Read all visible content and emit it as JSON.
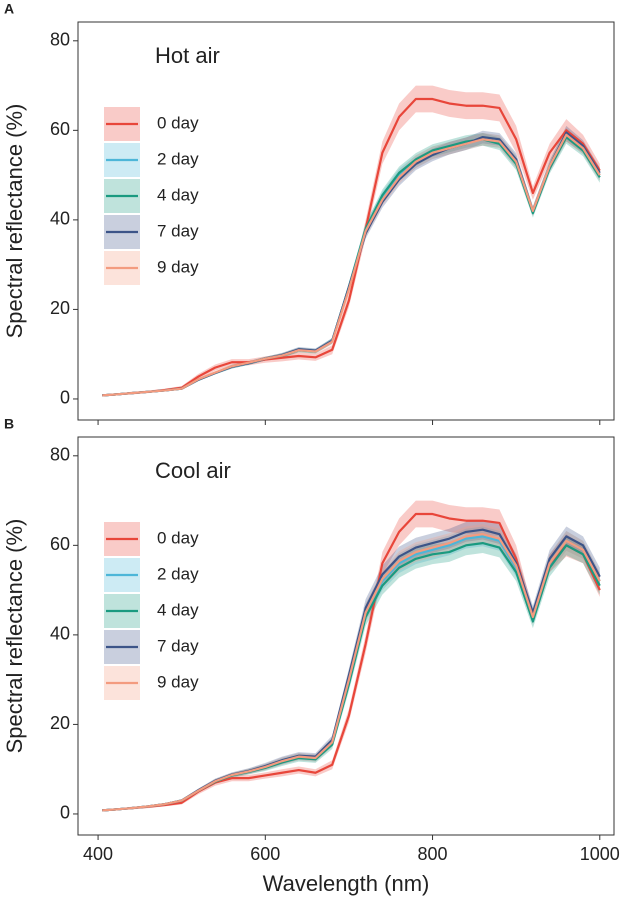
{
  "chart_data": [
    {
      "type": "line",
      "panel_label": "A",
      "legend_title": "Hot air",
      "ylabel": "Spectral reflectance (%)",
      "xlim": [
        376,
        1017
      ],
      "ylim": [
        -4.7,
        84.2
      ],
      "xticks": [
        400,
        600,
        800,
        1000
      ],
      "yticks": [
        0,
        20,
        40,
        60,
        80
      ],
      "show_xtick_labels": false,
      "x": [
        405,
        420,
        440,
        460,
        480,
        500,
        520,
        540,
        560,
        580,
        600,
        620,
        640,
        660,
        680,
        700,
        720,
        740,
        760,
        780,
        800,
        820,
        840,
        860,
        880,
        900,
        920,
        940,
        960,
        980,
        1000
      ],
      "series": [
        {
          "name": "0 day",
          "color": "#e8463a",
          "values": [
            0.8,
            1.0,
            1.3,
            1.6,
            2.0,
            2.5,
            5.0,
            7.0,
            8.2,
            8.2,
            8.8,
            9.2,
            9.6,
            9.3,
            11,
            22,
            38,
            55,
            63,
            67,
            67,
            66,
            65.5,
            65.5,
            65,
            58,
            46,
            55,
            60,
            57,
            51
          ],
          "errors": [
            0.2,
            0.2,
            0.3,
            0.3,
            0.3,
            0.4,
            0.6,
            0.7,
            0.7,
            0.7,
            0.7,
            0.8,
            0.8,
            0.8,
            1,
            1.5,
            2,
            2.5,
            3,
            3,
            3,
            3,
            3,
            3,
            3,
            3,
            1.5,
            2,
            2.5,
            2,
            1.5
          ]
        },
        {
          "name": "2 day",
          "color": "#4db6d8",
          "values": [
            0.8,
            1.0,
            1.3,
            1.6,
            1.9,
            2.3,
            4.3,
            5.8,
            7.2,
            8.0,
            9.0,
            9.7,
            11.0,
            10.7,
            13,
            25,
            38,
            45,
            50,
            53,
            55,
            56,
            57,
            58,
            57.5,
            53,
            42,
            52,
            59,
            56,
            50
          ],
          "errors": [
            0.1,
            0.1,
            0.1,
            0.2,
            0.2,
            0.2,
            0.3,
            0.3,
            0.4,
            0.4,
            0.4,
            0.5,
            0.5,
            0.5,
            0.6,
            1,
            1.2,
            1.3,
            1.4,
            1.4,
            1.4,
            1.4,
            1.4,
            1.4,
            1.4,
            1.4,
            1,
            1.2,
            1.5,
            1.3,
            1.2
          ]
        },
        {
          "name": "4 day",
          "color": "#1a9a80",
          "values": [
            0.8,
            1.0,
            1.3,
            1.6,
            1.9,
            2.3,
            4.3,
            5.8,
            7.2,
            8.0,
            9.0,
            9.7,
            10.9,
            10.6,
            13,
            25,
            38,
            45.5,
            50.5,
            53.5,
            55.5,
            56.5,
            57.5,
            58,
            57,
            52.5,
            41.5,
            51.5,
            58.5,
            55.5,
            49.5
          ],
          "errors": [
            0.1,
            0.1,
            0.1,
            0.2,
            0.2,
            0.2,
            0.3,
            0.3,
            0.4,
            0.4,
            0.4,
            0.5,
            0.5,
            0.5,
            0.6,
            1,
            1.2,
            1.3,
            1.4,
            1.4,
            1.4,
            1.4,
            1.4,
            1.4,
            1.4,
            1.4,
            1,
            1.2,
            1.5,
            1.3,
            1.2
          ]
        },
        {
          "name": "7 day",
          "color": "#3c5488",
          "values": [
            0.8,
            1.0,
            1.3,
            1.6,
            1.9,
            2.3,
            4.3,
            5.8,
            7.2,
            8.0,
            9.0,
            9.8,
            11.1,
            10.8,
            13,
            25,
            37,
            44,
            49,
            52.5,
            54.5,
            56,
            57,
            58.5,
            58,
            53.5,
            42,
            52,
            59.5,
            56.5,
            50.5
          ],
          "errors": [
            0.1,
            0.1,
            0.1,
            0.2,
            0.2,
            0.2,
            0.3,
            0.3,
            0.4,
            0.4,
            0.4,
            0.5,
            0.5,
            0.5,
            0.6,
            1,
            1.2,
            1.3,
            1.4,
            1.4,
            1.4,
            1.4,
            1.4,
            1.4,
            1.4,
            1.4,
            1,
            1.2,
            1.5,
            1.3,
            1.2
          ]
        },
        {
          "name": "9 day",
          "color": "#f39b7f",
          "values": [
            0.8,
            1.0,
            1.3,
            1.6,
            1.9,
            2.3,
            4.4,
            5.9,
            7.3,
            8.1,
            9.0,
            9.7,
            10.9,
            10.6,
            12.8,
            24.5,
            37.5,
            44.5,
            49.5,
            53,
            55,
            56,
            57,
            58,
            57.5,
            53,
            42,
            52,
            59,
            56,
            50
          ],
          "errors": [
            0.1,
            0.1,
            0.1,
            0.2,
            0.2,
            0.2,
            0.3,
            0.3,
            0.4,
            0.4,
            0.4,
            0.5,
            0.5,
            0.5,
            0.6,
            1,
            1.2,
            1.3,
            1.4,
            1.4,
            1.4,
            1.4,
            1.4,
            1.4,
            1.4,
            1.4,
            1,
            1.2,
            1.5,
            1.3,
            1.2
          ]
        }
      ]
    },
    {
      "type": "line",
      "panel_label": "B",
      "legend_title": "Cool air",
      "ylabel": "Spectral reflectance (%)",
      "xlabel": "Wavelength (nm)",
      "xlim": [
        376,
        1017
      ],
      "ylim": [
        -4.7,
        84.2
      ],
      "xticks": [
        400,
        600,
        800,
        1000
      ],
      "yticks": [
        0,
        20,
        40,
        60,
        80
      ],
      "show_xtick_labels": true,
      "x": [
        405,
        420,
        440,
        460,
        480,
        500,
        520,
        540,
        560,
        580,
        600,
        620,
        640,
        660,
        680,
        700,
        720,
        740,
        760,
        780,
        800,
        820,
        840,
        860,
        880,
        900,
        920,
        940,
        960,
        980,
        1000
      ],
      "series": [
        {
          "name": "0 day",
          "color": "#e8463a",
          "values": [
            0.8,
            1.0,
            1.3,
            1.6,
            2.0,
            2.5,
            5.0,
            7.0,
            8.0,
            8.0,
            8.6,
            9.2,
            9.8,
            9.2,
            11,
            22,
            38,
            56,
            63,
            67,
            67,
            66,
            65.5,
            65.5,
            65,
            57,
            44,
            56,
            60,
            58,
            50
          ],
          "errors": [
            0.2,
            0.2,
            0.3,
            0.3,
            0.3,
            0.4,
            0.6,
            0.7,
            0.7,
            0.7,
            0.7,
            0.8,
            0.8,
            0.8,
            1,
            1.5,
            2,
            2.5,
            3,
            3,
            3,
            3,
            3,
            3,
            3,
            3,
            1.5,
            2,
            2.5,
            2,
            1.5
          ]
        },
        {
          "name": "2 day",
          "color": "#4db6d8",
          "values": [
            0.8,
            1.0,
            1.3,
            1.7,
            2.2,
            3.0,
            5.2,
            7.3,
            8.7,
            9.5,
            10.5,
            11.8,
            12.8,
            12.5,
            16,
            30,
            45,
            52,
            56,
            58,
            59,
            60,
            61.5,
            62,
            61,
            55,
            44,
            56,
            61,
            59,
            52
          ],
          "errors": [
            0.1,
            0.1,
            0.2,
            0.2,
            0.2,
            0.3,
            0.4,
            0.5,
            0.5,
            0.6,
            0.7,
            0.8,
            0.8,
            0.8,
            1,
            1.5,
            2,
            2,
            2.2,
            2.2,
            2.2,
            2.2,
            2.2,
            2.2,
            2.2,
            2,
            1.5,
            2,
            2.2,
            2,
            2
          ]
        },
        {
          "name": "4 day",
          "color": "#1a9a80",
          "values": [
            0.8,
            1.0,
            1.3,
            1.7,
            2.2,
            3.0,
            5.2,
            7.2,
            8.6,
            9.4,
            10.3,
            11.5,
            12.5,
            12.2,
            15.5,
            29,
            44,
            51,
            55,
            57,
            58,
            58.5,
            60,
            60.5,
            59.5,
            54,
            43,
            55,
            60,
            58,
            51
          ],
          "errors": [
            0.1,
            0.1,
            0.2,
            0.2,
            0.2,
            0.3,
            0.4,
            0.5,
            0.5,
            0.6,
            0.7,
            0.8,
            0.8,
            0.8,
            1,
            1.5,
            2,
            2,
            2.2,
            2.2,
            2.2,
            2.2,
            2.2,
            2.2,
            2.2,
            2,
            1.5,
            2,
            2.2,
            2,
            2
          ]
        },
        {
          "name": "7 day",
          "color": "#3c5488",
          "values": [
            0.8,
            1.0,
            1.3,
            1.7,
            2.2,
            3.0,
            5.3,
            7.4,
            8.8,
            9.6,
            10.7,
            12.0,
            13.0,
            12.8,
            16.5,
            31,
            46,
            53.5,
            57.5,
            59.5,
            60.5,
            61.5,
            63,
            63.5,
            62.5,
            56,
            45,
            57,
            62,
            60,
            53
          ],
          "errors": [
            0.1,
            0.1,
            0.2,
            0.2,
            0.2,
            0.3,
            0.4,
            0.5,
            0.5,
            0.6,
            0.7,
            0.8,
            0.8,
            0.8,
            1,
            1.5,
            2,
            2,
            2.2,
            2.2,
            2.2,
            2.2,
            2.2,
            2.2,
            2.2,
            2,
            1.5,
            2,
            2.2,
            2,
            2
          ]
        },
        {
          "name": "9 day",
          "color": "#f39b7f",
          "values": [
            0.8,
            1.0,
            1.3,
            1.7,
            2.2,
            3.0,
            5.2,
            7.3,
            8.7,
            9.5,
            10.5,
            11.8,
            12.8,
            12.5,
            16,
            30,
            45,
            52.5,
            56.5,
            58.5,
            59.5,
            60.5,
            62,
            62.5,
            61.5,
            55.5,
            44,
            56,
            61,
            59,
            52
          ],
          "errors": [
            0.1,
            0.1,
            0.2,
            0.2,
            0.2,
            0.3,
            0.4,
            0.5,
            0.5,
            0.6,
            0.7,
            0.8,
            0.8,
            0.8,
            1,
            1.5,
            2,
            2,
            2.2,
            2.2,
            2.2,
            2.2,
            2.2,
            2.2,
            2.2,
            2,
            1.5,
            2,
            2.2,
            2,
            2
          ]
        }
      ]
    }
  ]
}
